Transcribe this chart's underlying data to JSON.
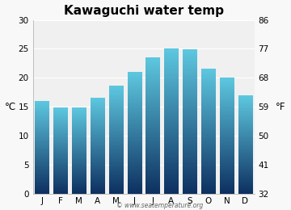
{
  "title": "Kawaguchi water temp",
  "months": [
    "J",
    "F",
    "M",
    "A",
    "M",
    "J",
    "J",
    "A",
    "S",
    "O",
    "N",
    "D"
  ],
  "values_c": [
    16.0,
    14.8,
    14.9,
    16.5,
    18.6,
    21.0,
    23.5,
    25.0,
    24.9,
    21.5,
    20.0,
    17.0
  ],
  "ylabel_left": "°C",
  "ylabel_right": "°F",
  "ylim_c": [
    0,
    30
  ],
  "yticks_c": [
    0,
    5,
    10,
    15,
    20,
    25,
    30
  ],
  "yticks_f": [
    32,
    41,
    50,
    59,
    68,
    77,
    86
  ],
  "bar_color_top": "#5ec8e0",
  "bar_color_bottom": "#0d3060",
  "bar_color_mid": "#1a7aaa",
  "plot_bg": "#f0f0f0",
  "fig_bg": "#f8f8f8",
  "title_fontsize": 11,
  "axis_fontsize": 7.5,
  "watermark": "© www.seatemperature.org",
  "bar_width": 0.75,
  "grid_color": "#ffffff",
  "spine_color": "#aaaaaa"
}
